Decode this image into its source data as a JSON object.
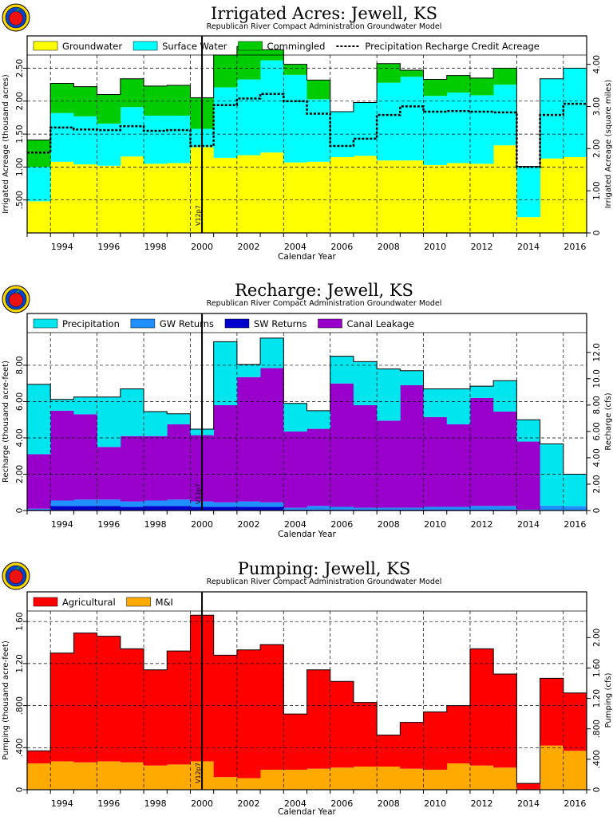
{
  "chart_data": [
    {
      "type": "area",
      "title": "Irrigated Acres: Jewell, KS",
      "subtitle": "Republican River Compact Administration Groundwater Model",
      "xlabel": "Calendar Year",
      "ylabel": "Irrigated Acreage (thousand acres)",
      "y2label": "Irrigated Acreage (square miles)",
      "xlim": [
        1993,
        2017
      ],
      "ylim": [
        0,
        2.7
      ],
      "y2lim": [
        0,
        4.22
      ],
      "yticks": [
        ".500",
        "1.00",
        "1.50",
        "2.00",
        "2.50"
      ],
      "y2ticks": [
        "0",
        "1.00",
        "2.00",
        "3.00",
        "4.00"
      ],
      "xticks": [
        "1994",
        "1996",
        "1998",
        "2000",
        "2002",
        "2004",
        "2006",
        "2008",
        "2010",
        "2012",
        "2014",
        "2016"
      ],
      "marker_label": "V12p7",
      "legend_position": "top",
      "years": [
        1993,
        1994,
        1995,
        1996,
        1997,
        1998,
        1999,
        2000,
        2001,
        2002,
        2003,
        2004,
        2005,
        2006,
        2007,
        2008,
        2009,
        2010,
        2011,
        2012,
        2013,
        2014,
        2015,
        2016
      ],
      "series": [
        {
          "name": "Groundwater",
          "color": "#ffff00",
          "values": [
            0.48,
            1.08,
            1.04,
            1.02,
            1.16,
            1.05,
            1.06,
            1.3,
            1.14,
            1.18,
            1.22,
            1.07,
            1.08,
            1.15,
            1.17,
            1.1,
            1.1,
            1.03,
            1.06,
            1.05,
            1.33,
            0.24,
            1.13,
            1.15
          ]
        },
        {
          "name": "Surface Water",
          "color": "#00ffff",
          "values": [
            0.52,
            0.74,
            0.73,
            0.64,
            0.75,
            0.73,
            0.72,
            0.28,
            1.07,
            1.15,
            1.4,
            1.33,
            0.95,
            0.69,
            0.81,
            1.18,
            1.27,
            1.05,
            1.07,
            1.04,
            0.92,
            0.77,
            1.21,
            1.35
          ]
        },
        {
          "name": "Commingled",
          "color": "#00cc00",
          "values": [
            0.41,
            0.45,
            0.45,
            0.44,
            0.43,
            0.45,
            0.46,
            0.47,
            0.49,
            0.5,
            0.16,
            0.16,
            0.29,
            0.0,
            0.0,
            0.29,
            0.1,
            0.25,
            0.26,
            0.26,
            0.25,
            0.0,
            0.0,
            0.0
          ]
        }
      ],
      "line": {
        "name": "Precipitation Recharge Credit Acreage",
        "color": "#000000",
        "values": [
          1.22,
          1.6,
          1.57,
          1.56,
          1.62,
          1.55,
          1.56,
          1.32,
          1.94,
          2.04,
          2.11,
          2.0,
          1.81,
          1.32,
          1.43,
          1.79,
          1.92,
          1.84,
          1.85,
          1.84,
          1.83,
          1.0,
          1.79,
          1.96
        ]
      }
    },
    {
      "type": "area",
      "title": "Recharge: Jewell, KS",
      "subtitle": "Republican River Compact Administration Groundwater Model",
      "xlabel": "Calendar Year",
      "ylabel": "Recharge (thousand acre-feet)",
      "y2label": "Recharge (cfs)",
      "xlim": [
        1993,
        2017
      ],
      "ylim": [
        0,
        9.8
      ],
      "y2lim": [
        0,
        13.5
      ],
      "yticks": [
        "0",
        "2.00",
        "4.00",
        "6.00",
        "8.00"
      ],
      "y2ticks": [
        "0",
        "2.00",
        "4.00",
        "6.00",
        "8.00",
        "10.0",
        "12.0"
      ],
      "xticks": [
        "1994",
        "1996",
        "1998",
        "2000",
        "2002",
        "2004",
        "2006",
        "2008",
        "2010",
        "2012",
        "2014",
        "2016"
      ],
      "marker_label": "V12p7",
      "legend_position": "top",
      "years": [
        1993,
        1994,
        1995,
        1996,
        1997,
        1998,
        1999,
        2000,
        2001,
        2002,
        2003,
        2004,
        2005,
        2006,
        2007,
        2008,
        2009,
        2010,
        2011,
        2012,
        2013,
        2014,
        2015,
        2016
      ],
      "series": [
        {
          "name": "SW Returns",
          "color": "#0000cc",
          "values": [
            0.05,
            0.25,
            0.25,
            0.25,
            0.2,
            0.25,
            0.25,
            0.2,
            0.2,
            0.2,
            0.2,
            0.05,
            0.05,
            0.05,
            0.05,
            0.05,
            0.05,
            0.05,
            0.05,
            0.05,
            0.05,
            0.02,
            0.02,
            0.02
          ]
        },
        {
          "name": "GW Returns",
          "color": "#1e90ff",
          "values": [
            0.05,
            0.3,
            0.35,
            0.35,
            0.3,
            0.3,
            0.35,
            0.3,
            0.25,
            0.3,
            0.25,
            0.1,
            0.2,
            0.15,
            0.1,
            0.1,
            0.1,
            0.15,
            0.15,
            0.2,
            0.2,
            0.03,
            0.25,
            0.23
          ]
        },
        {
          "name": "Canal Leakage",
          "color": "#9900cc",
          "values": [
            3.0,
            4.95,
            4.7,
            2.9,
            3.6,
            3.55,
            4.15,
            3.65,
            5.35,
            6.85,
            7.4,
            4.2,
            4.25,
            6.8,
            5.65,
            4.8,
            6.75,
            4.95,
            4.55,
            5.95,
            5.2,
            3.75,
            0.0,
            0.0
          ]
        },
        {
          "name": "Precipitation",
          "color": "#00e5ee",
          "values": [
            3.85,
            0.62,
            0.95,
            2.75,
            2.6,
            1.35,
            0.58,
            0.33,
            3.5,
            0.7,
            1.65,
            1.55,
            1.0,
            1.5,
            2.4,
            2.85,
            0.8,
            1.55,
            1.95,
            0.65,
            1.7,
            1.2,
            3.4,
            1.75
          ]
        }
      ]
    },
    {
      "type": "area",
      "title": "Pumping: Jewell, KS",
      "subtitle": "Republican River Compact Administration Groundwater Model",
      "xlabel": "Calendar Year",
      "ylabel": "Pumping (thousand acre-feet)",
      "y2label": "Pumping (cfs)",
      "xlim": [
        1993,
        2017
      ],
      "ylim": [
        0,
        1.7
      ],
      "y2lim": [
        0,
        2.35
      ],
      "yticks": [
        "0",
        ".400",
        ".800",
        "1.20",
        "1.60"
      ],
      "y2ticks": [
        "0",
        ".400",
        ".800",
        "1.20",
        "1.60",
        "2.00"
      ],
      "xticks": [
        "1994",
        "1996",
        "1998",
        "2000",
        "2002",
        "2004",
        "2006",
        "2008",
        "2010",
        "2012",
        "2014",
        "2016"
      ],
      "marker_label": "V12p7",
      "legend_position": "top",
      "years": [
        1993,
        1994,
        1995,
        1996,
        1997,
        1998,
        1999,
        2000,
        2001,
        2002,
        2003,
        2004,
        2005,
        2006,
        2007,
        2008,
        2009,
        2010,
        2011,
        2012,
        2013,
        2014,
        2015,
        2016
      ],
      "series": [
        {
          "name": "M&I",
          "color": "#ffaa00",
          "values": [
            0.25,
            0.27,
            0.26,
            0.27,
            0.26,
            0.23,
            0.24,
            0.27,
            0.12,
            0.11,
            0.19,
            0.19,
            0.2,
            0.21,
            0.22,
            0.22,
            0.2,
            0.19,
            0.25,
            0.23,
            0.21,
            0.0,
            0.42,
            0.37
          ]
        },
        {
          "name": "Agricultural",
          "color": "#ff0000",
          "values": [
            0.12,
            1.03,
            1.23,
            1.19,
            1.08,
            0.91,
            1.08,
            1.39,
            1.16,
            1.22,
            1.19,
            0.53,
            0.94,
            0.82,
            0.61,
            0.3,
            0.44,
            0.55,
            0.55,
            1.11,
            0.89,
            0.06,
            0.64,
            0.55
          ]
        }
      ]
    }
  ]
}
